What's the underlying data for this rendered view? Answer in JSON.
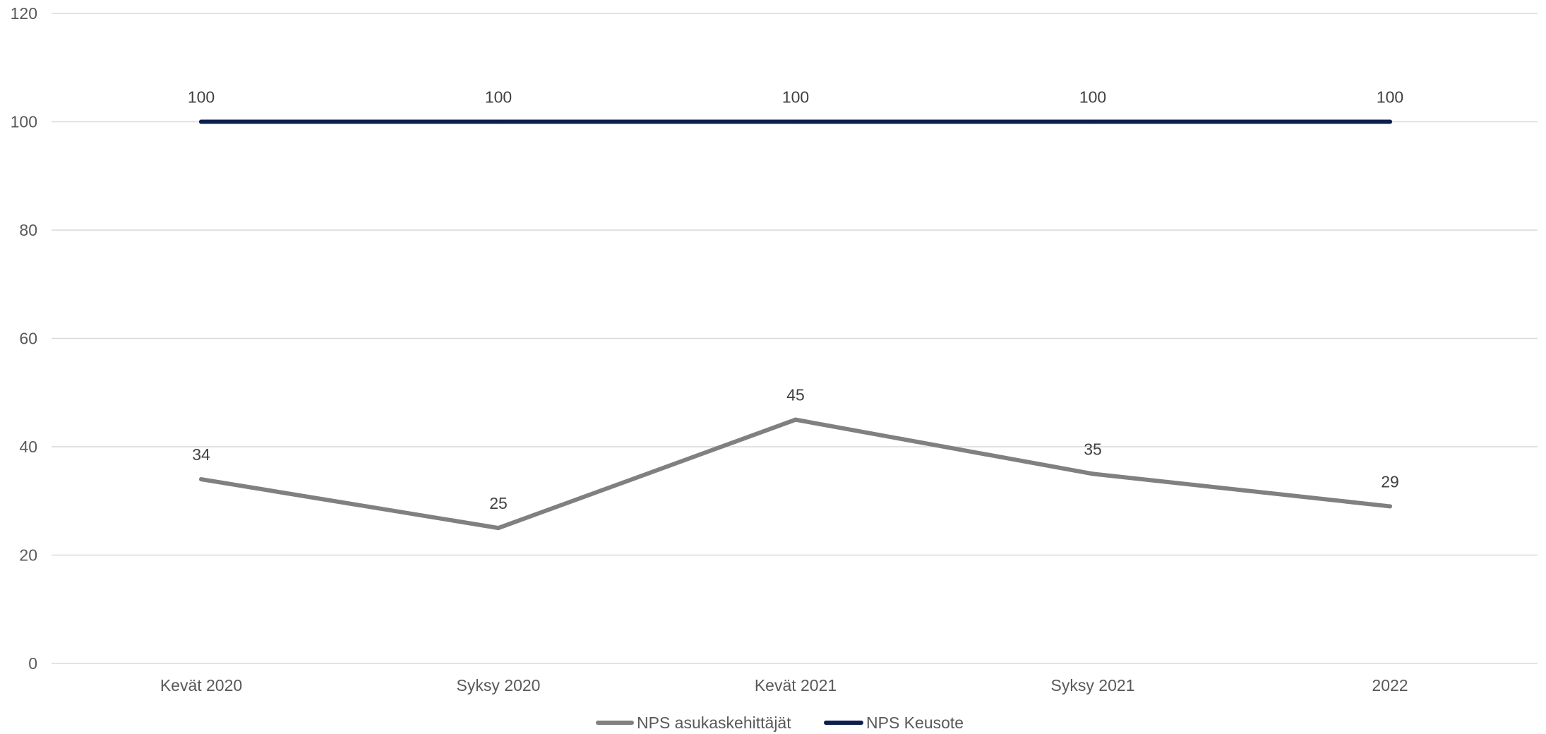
{
  "chart_data": {
    "type": "line",
    "title": "",
    "xlabel": "",
    "ylabel": "",
    "categories": [
      "Kevät 2020",
      "Syksy 2020",
      "Kevät 2021",
      "Syksy 2021",
      "2022"
    ],
    "ylim": [
      0,
      120
    ],
    "yticks": [
      0,
      20,
      40,
      60,
      80,
      100,
      120
    ],
    "grid": true,
    "legend_position": "bottom-center",
    "series": [
      {
        "name": "NPS asukaskehittäjät",
        "values": [
          34,
          25,
          45,
          35,
          29
        ],
        "color": "#808080"
      },
      {
        "name": "NPS Keusote",
        "values": [
          100,
          100,
          100,
          100,
          100
        ],
        "color": "#0c1f4f"
      }
    ]
  }
}
